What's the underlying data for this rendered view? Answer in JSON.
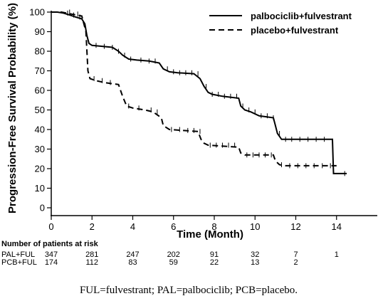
{
  "chart_data": {
    "type": "line",
    "title": "",
    "xlabel": "Time (Month)",
    "ylabel": "Progression-Free Survival Probability (%)",
    "xlim": [
      0,
      16
    ],
    "ylim": [
      0,
      100
    ],
    "x_ticks": [
      0,
      2,
      4,
      6,
      8,
      10,
      12,
      14
    ],
    "y_ticks": [
      0,
      10,
      20,
      30,
      40,
      50,
      60,
      70,
      80,
      90,
      100
    ],
    "x_tick_labels": [
      "0",
      "2",
      "4",
      "6",
      "8",
      "10",
      "12",
      "14"
    ],
    "y_tick_labels": [
      "0",
      "10",
      "20",
      "30",
      "40",
      "50",
      "60",
      "70",
      "80",
      "90",
      "100"
    ],
    "grid": false,
    "legend": "top-right",
    "series": [
      {
        "name": "palbociclib+fulvestrant",
        "style": "solid",
        "color": "#000000",
        "points": [
          [
            0,
            100
          ],
          [
            0.3,
            100
          ],
          [
            0.6,
            99.5
          ],
          [
            0.9,
            98.5
          ],
          [
            1.2,
            97.5
          ],
          [
            1.5,
            96.5
          ],
          [
            1.65,
            94
          ],
          [
            1.75,
            88
          ],
          [
            1.85,
            84
          ],
          [
            2.0,
            83
          ],
          [
            2.5,
            82.5
          ],
          [
            3.0,
            82
          ],
          [
            3.3,
            80
          ],
          [
            3.5,
            78
          ],
          [
            3.8,
            76
          ],
          [
            4.2,
            75.5
          ],
          [
            4.8,
            75
          ],
          [
            5.3,
            74
          ],
          [
            5.5,
            71
          ],
          [
            5.8,
            69.5
          ],
          [
            6.2,
            69
          ],
          [
            7.0,
            68.5
          ],
          [
            7.3,
            66
          ],
          [
            7.5,
            62
          ],
          [
            7.7,
            59
          ],
          [
            7.9,
            58
          ],
          [
            8.4,
            57
          ],
          [
            9.2,
            56
          ],
          [
            9.3,
            52
          ],
          [
            9.5,
            50
          ],
          [
            9.8,
            49
          ],
          [
            10.2,
            47
          ],
          [
            10.9,
            46
          ],
          [
            11.0,
            42
          ],
          [
            11.1,
            38
          ],
          [
            11.3,
            35
          ],
          [
            12.0,
            35
          ],
          [
            13.8,
            35
          ],
          [
            13.85,
            17.5
          ],
          [
            14.5,
            17.5
          ]
        ],
        "censor_marks_x": [
          0.8,
          1.1,
          1.4,
          2.2,
          2.6,
          3.0,
          3.3,
          3.6,
          3.9,
          4.4,
          4.8,
          5.1,
          5.7,
          6.0,
          6.3,
          6.6,
          6.9,
          7.2,
          7.6,
          7.9,
          8.2,
          8.5,
          8.8,
          9.1,
          9.4,
          9.7,
          10.0,
          10.3,
          10.6,
          10.9,
          11.2,
          11.5,
          11.8,
          12.2,
          12.6,
          13.0,
          13.4,
          14.4
        ]
      },
      {
        "name": "placebo+fulvestrant",
        "style": "dashed",
        "color": "#000000",
        "points": [
          [
            0,
            100
          ],
          [
            0.5,
            100
          ],
          [
            1.0,
            99
          ],
          [
            1.5,
            98
          ],
          [
            1.7,
            90
          ],
          [
            1.8,
            70
          ],
          [
            1.9,
            66
          ],
          [
            2.2,
            65
          ],
          [
            2.6,
            64
          ],
          [
            3.3,
            63
          ],
          [
            3.5,
            57
          ],
          [
            3.7,
            52
          ],
          [
            4.0,
            51
          ],
          [
            4.6,
            50
          ],
          [
            5.0,
            49
          ],
          [
            5.4,
            46
          ],
          [
            5.5,
            42
          ],
          [
            5.8,
            40
          ],
          [
            6.5,
            39.5
          ],
          [
            7.2,
            39
          ],
          [
            7.35,
            35
          ],
          [
            7.5,
            33
          ],
          [
            7.7,
            32
          ],
          [
            9.2,
            31
          ],
          [
            9.3,
            28
          ],
          [
            9.5,
            27
          ],
          [
            10.9,
            27
          ],
          [
            11.0,
            24
          ],
          [
            11.2,
            22
          ],
          [
            11.5,
            21.5
          ],
          [
            14.0,
            21.5
          ]
        ],
        "censor_marks_x": [
          0.9,
          1.3,
          2.1,
          2.5,
          2.9,
          3.8,
          4.3,
          4.9,
          5.2,
          5.9,
          6.3,
          6.7,
          7.0,
          7.3,
          7.8,
          8.1,
          8.4,
          8.7,
          9.0,
          9.6,
          9.9,
          10.2,
          10.5,
          10.8,
          11.3,
          11.7,
          12.1,
          12.5,
          12.9,
          13.3,
          13.7
        ]
      }
    ]
  },
  "risk_table": {
    "heading": "Number of patients at risk",
    "times": [
      0,
      2,
      4,
      6,
      8,
      10,
      12,
      14
    ],
    "rows": [
      {
        "label": "PAL+FUL",
        "values": [
          "347",
          "281",
          "247",
          "202",
          "91",
          "32",
          "7",
          "1"
        ]
      },
      {
        "label": "PCB+FUL",
        "values": [
          "174",
          "112",
          "83",
          "59",
          "22",
          "13",
          "2",
          ""
        ]
      }
    ]
  },
  "footnote": "FUL=fulvestrant; PAL=palbociclib; PCB=placebo."
}
